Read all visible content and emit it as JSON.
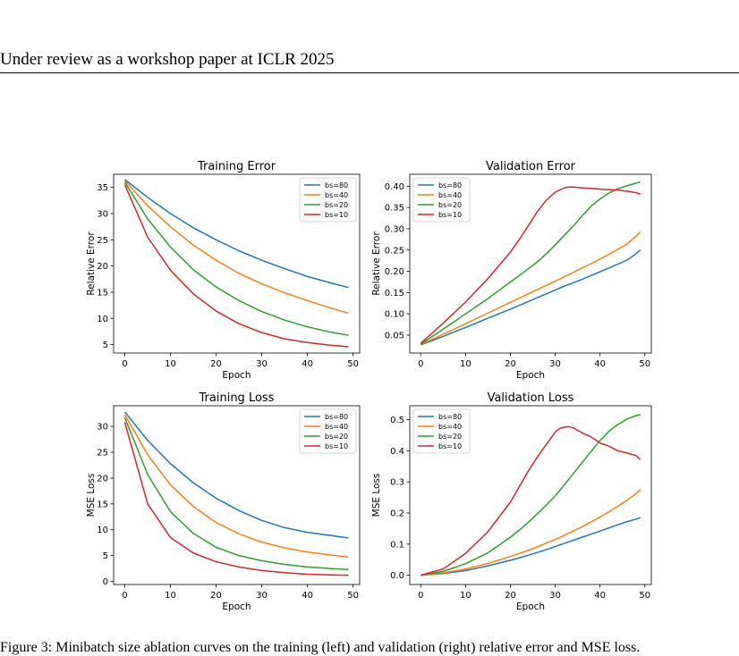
{
  "page": {
    "header": "Under review as a workshop paper at ICLR 2025",
    "caption": "Figure 3: Minibatch size ablation curves on the training (left) and validation (right) relative error and MSE loss."
  },
  "colors": {
    "bs=80": "#1f77b4",
    "bs=40": "#ff7f0e",
    "bs=20": "#2ca02c",
    "bs=10": "#d62728"
  },
  "chart_data": [
    {
      "type": "line",
      "title": "Training Error",
      "xlabel": "Epoch",
      "ylabel": "Relative Error",
      "xlim": [
        -2.45,
        51.45
      ],
      "ylim": [
        3.4,
        37.5
      ],
      "xticks": [
        0,
        10,
        20,
        30,
        40,
        50
      ],
      "yticks": [
        5,
        10,
        15,
        20,
        25,
        30,
        35
      ],
      "tick_format": "int",
      "grid": false,
      "legend": "top-right",
      "x": [
        0,
        5,
        10,
        15,
        20,
        25,
        30,
        35,
        40,
        45,
        49
      ],
      "series": [
        {
          "name": "bs=80",
          "values": [
            36.5,
            33.1,
            30.0,
            27.3,
            25.0,
            22.9,
            21.1,
            19.5,
            18.0,
            16.8,
            15.9
          ]
        },
        {
          "name": "bs=40",
          "values": [
            36.3,
            31.5,
            27.5,
            24.0,
            21.1,
            18.6,
            16.6,
            14.9,
            13.4,
            12.0,
            11.0
          ]
        },
        {
          "name": "bs=20",
          "values": [
            36.0,
            29.0,
            23.6,
            19.3,
            16.0,
            13.4,
            11.3,
            9.7,
            8.4,
            7.4,
            6.8
          ]
        },
        {
          "name": "bs=10",
          "values": [
            35.5,
            25.5,
            19.2,
            14.7,
            11.4,
            9.0,
            7.3,
            6.1,
            5.4,
            4.9,
            4.6
          ]
        }
      ]
    },
    {
      "type": "line",
      "title": "Validation Error",
      "xlabel": "Epoch",
      "ylabel": "Relative Error",
      "xlim": [
        -2.45,
        51.45
      ],
      "ylim": [
        0.008,
        0.428
      ],
      "xticks": [
        0,
        10,
        20,
        30,
        40,
        50
      ],
      "yticks": [
        0.05,
        0.1,
        0.15,
        0.2,
        0.25,
        0.3,
        0.35,
        0.4
      ],
      "tick_format": "2dp",
      "grid": false,
      "legend": "top-left",
      "x": [
        0,
        5,
        10,
        15,
        20,
        22,
        24,
        26,
        28,
        30,
        32,
        33,
        34,
        35,
        36,
        38,
        40,
        42,
        44,
        46,
        48,
        49
      ],
      "series": [
        {
          "name": "bs=80",
          "values": [
            0.027,
            0.047,
            0.068,
            0.09,
            0.111,
            0.12,
            0.129,
            0.138,
            0.147,
            0.156,
            0.165,
            0.169,
            0.173,
            0.177,
            0.181,
            0.19,
            0.199,
            0.208,
            0.217,
            0.226,
            0.241,
            0.25
          ]
        },
        {
          "name": "bs=40",
          "values": [
            0.028,
            0.052,
            0.077,
            0.102,
            0.127,
            0.137,
            0.147,
            0.157,
            0.167,
            0.177,
            0.187,
            0.192,
            0.197,
            0.203,
            0.208,
            0.218,
            0.229,
            0.24,
            0.252,
            0.264,
            0.282,
            0.293
          ]
        },
        {
          "name": "bs=20",
          "values": [
            0.029,
            0.064,
            0.1,
            0.136,
            0.175,
            0.19,
            0.206,
            0.222,
            0.241,
            0.262,
            0.284,
            0.295,
            0.306,
            0.318,
            0.33,
            0.353,
            0.37,
            0.384,
            0.394,
            0.401,
            0.407,
            0.41
          ]
        },
        {
          "name": "bs=10",
          "values": [
            0.031,
            0.078,
            0.128,
            0.183,
            0.245,
            0.275,
            0.307,
            0.34,
            0.367,
            0.386,
            0.396,
            0.398,
            0.398,
            0.397,
            0.396,
            0.395,
            0.393,
            0.392,
            0.391,
            0.388,
            0.385,
            0.381
          ]
        }
      ]
    },
    {
      "type": "line",
      "title": "Training Loss",
      "xlabel": "Epoch",
      "ylabel": "MSE Loss",
      "xlim": [
        -2.45,
        51.45
      ],
      "ylim": [
        -0.6,
        34.0
      ],
      "xticks": [
        0,
        10,
        20,
        30,
        40,
        50
      ],
      "yticks": [
        0,
        5,
        10,
        15,
        20,
        25,
        30
      ],
      "tick_format": "int",
      "grid": false,
      "legend": "top-right",
      "x": [
        0,
        5,
        10,
        15,
        20,
        25,
        30,
        35,
        40,
        45,
        49
      ],
      "series": [
        {
          "name": "bs=80",
          "values": [
            32.8,
            27.3,
            22.8,
            19.1,
            16.1,
            13.7,
            11.8,
            10.4,
            9.5,
            8.9,
            8.4
          ]
        },
        {
          "name": "bs=40",
          "values": [
            32.3,
            24.5,
            18.7,
            14.5,
            11.4,
            9.2,
            7.6,
            6.5,
            5.7,
            5.1,
            4.7
          ]
        },
        {
          "name": "bs=20",
          "values": [
            31.7,
            20.7,
            13.5,
            9.3,
            6.6,
            5.0,
            4.0,
            3.3,
            2.8,
            2.5,
            2.3
          ]
        },
        {
          "name": "bs=10",
          "values": [
            30.8,
            15.0,
            8.5,
            5.5,
            3.8,
            2.8,
            2.1,
            1.7,
            1.4,
            1.25,
            1.2
          ]
        }
      ]
    },
    {
      "type": "line",
      "title": "Validation Loss",
      "xlabel": "Epoch",
      "ylabel": "MSE Loss",
      "xlim": [
        -2.45,
        51.45
      ],
      "ylim": [
        -0.03,
        0.545
      ],
      "xticks": [
        0,
        10,
        20,
        30,
        40,
        50
      ],
      "yticks": [
        0.0,
        0.1,
        0.2,
        0.3,
        0.4,
        0.5
      ],
      "tick_format": "1dp",
      "grid": false,
      "legend": "top-left",
      "x": [
        0,
        5,
        10,
        15,
        20,
        22,
        24,
        26,
        28,
        30,
        31,
        32,
        33,
        34,
        35,
        36,
        38,
        40,
        42,
        44,
        46,
        48,
        49
      ],
      "series": [
        {
          "name": "bs=80",
          "values": [
            0.0,
            0.005,
            0.015,
            0.03,
            0.048,
            0.056,
            0.064,
            0.073,
            0.082,
            0.092,
            0.097,
            0.102,
            0.107,
            0.112,
            0.117,
            0.122,
            0.132,
            0.142,
            0.152,
            0.162,
            0.172,
            0.18,
            0.185
          ]
        },
        {
          "name": "bs=40",
          "values": [
            0.0,
            0.007,
            0.02,
            0.038,
            0.06,
            0.07,
            0.08,
            0.091,
            0.103,
            0.115,
            0.121,
            0.128,
            0.135,
            0.142,
            0.149,
            0.156,
            0.171,
            0.187,
            0.204,
            0.222,
            0.241,
            0.262,
            0.276
          ]
        },
        {
          "name": "bs=20",
          "values": [
            0.0,
            0.012,
            0.037,
            0.072,
            0.122,
            0.145,
            0.17,
            0.197,
            0.225,
            0.255,
            0.272,
            0.29,
            0.308,
            0.326,
            0.344,
            0.362,
            0.398,
            0.433,
            0.463,
            0.485,
            0.502,
            0.513,
            0.517
          ]
        },
        {
          "name": "bs=10",
          "values": [
            0.0,
            0.02,
            0.07,
            0.14,
            0.235,
            0.285,
            0.335,
            0.38,
            0.42,
            0.46,
            0.472,
            0.476,
            0.478,
            0.474,
            0.466,
            0.458,
            0.445,
            0.425,
            0.415,
            0.4,
            0.393,
            0.385,
            0.372
          ]
        }
      ]
    }
  ]
}
